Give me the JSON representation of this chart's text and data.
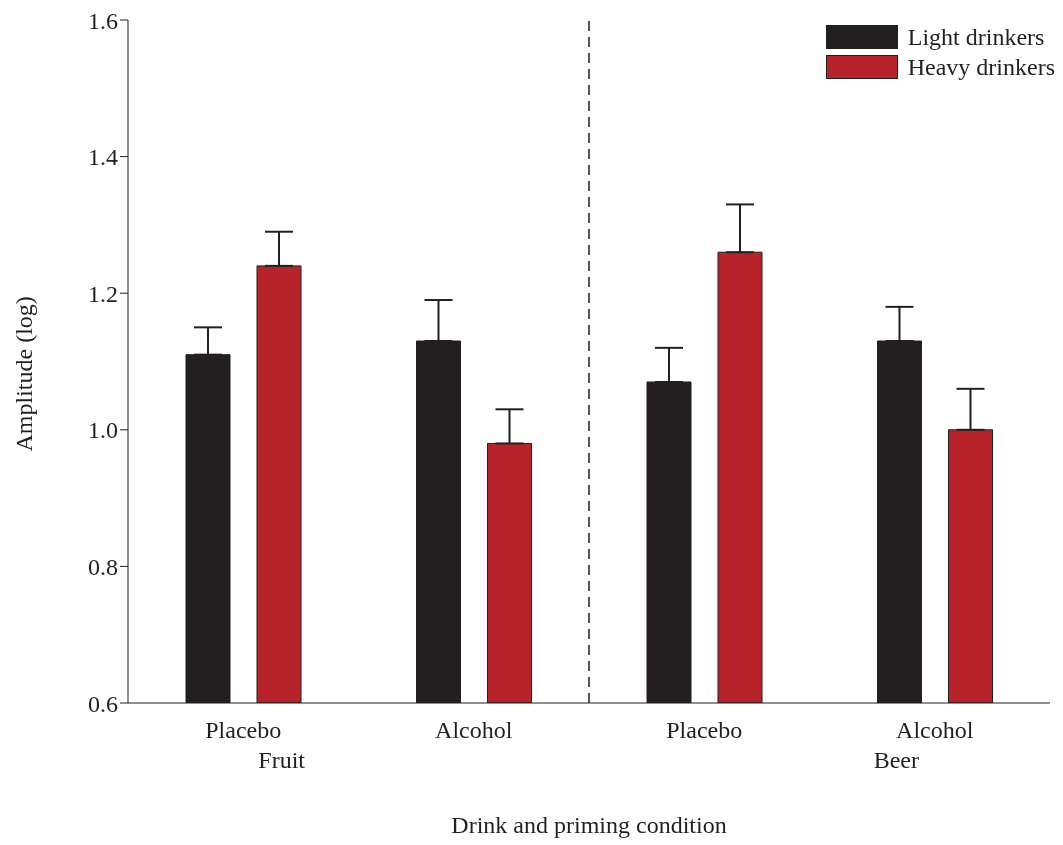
{
  "chart_data": {
    "type": "bar",
    "xlabel": "Drink and priming condition",
    "ylabel": "Amplitude (log)",
    "categories": [
      "Placebo",
      "Alcohol",
      "Placebo",
      "Alcohol"
    ],
    "series": [
      {
        "name": "Light drinkers",
        "color": "#231f20",
        "values": [
          1.11,
          1.13,
          1.07,
          1.13
        ],
        "errors": [
          [
            1.11,
            1.15
          ],
          [
            1.13,
            1.19
          ],
          [
            1.07,
            1.12
          ],
          [
            1.13,
            1.18
          ]
        ]
      },
      {
        "name": "Heavy drinkers",
        "color": "#b8222a",
        "values": [
          1.24,
          0.98,
          1.26,
          1.0
        ],
        "errors": [
          [
            1.24,
            1.29
          ],
          [
            0.98,
            1.03
          ],
          [
            1.26,
            1.33
          ],
          [
            1.0,
            1.06
          ]
        ]
      }
    ],
    "annotations": [
      "Fruit",
      "Beer"
    ],
    "ylim": [
      0.6,
      1.6
    ],
    "yticks": [
      0.6,
      0.8,
      {
        "value": 1.0,
        "label": "1.0"
      },
      1.2,
      1.4,
      1.6
    ],
    "legend": "top right",
    "grid": false
  }
}
